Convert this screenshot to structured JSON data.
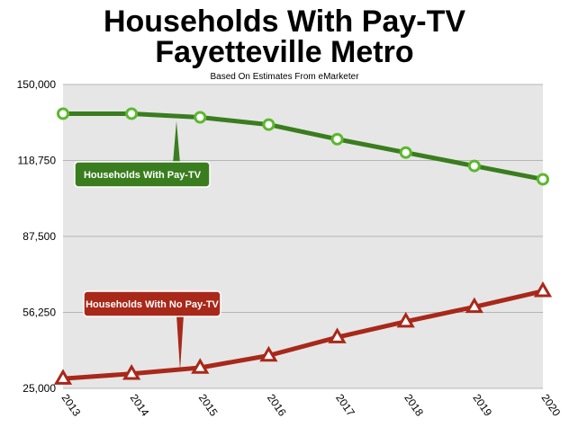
{
  "title_line1": "Households With Pay-TV",
  "title_line2": "Fayetteville Metro",
  "subtitle": "Based On Estimates From eMarketer",
  "chart_data": {
    "type": "line",
    "x": [
      "2013",
      "2014",
      "2015",
      "2016",
      "2017",
      "2018",
      "2019",
      "2020"
    ],
    "ylim": [
      25000,
      150000
    ],
    "yticks": [
      "150,000",
      "118,750",
      "87,500",
      "56,250",
      "25,000"
    ],
    "ytick_values": [
      150000,
      118750,
      87500,
      56250,
      25000
    ],
    "grid": true,
    "series": [
      {
        "name": "Households With Pay-TV",
        "color": "#3a7d1f",
        "marker_color": "#5cb82e",
        "marker": "circle",
        "values": [
          138000,
          138000,
          136500,
          133500,
          127500,
          122000,
          116500,
          111000
        ]
      },
      {
        "name": "Households With No Pay-TV",
        "color": "#a8281a",
        "marker_color": "#a8281a",
        "marker": "triangle",
        "values": [
          29000,
          31000,
          33500,
          38500,
          46000,
          52500,
          58500,
          65000
        ]
      }
    ],
    "callouts": [
      {
        "text": "Households With Pay-TV",
        "fill": "#3a7d1f"
      },
      {
        "text": "Households With No Pay-TV",
        "fill": "#a8281a"
      }
    ]
  }
}
